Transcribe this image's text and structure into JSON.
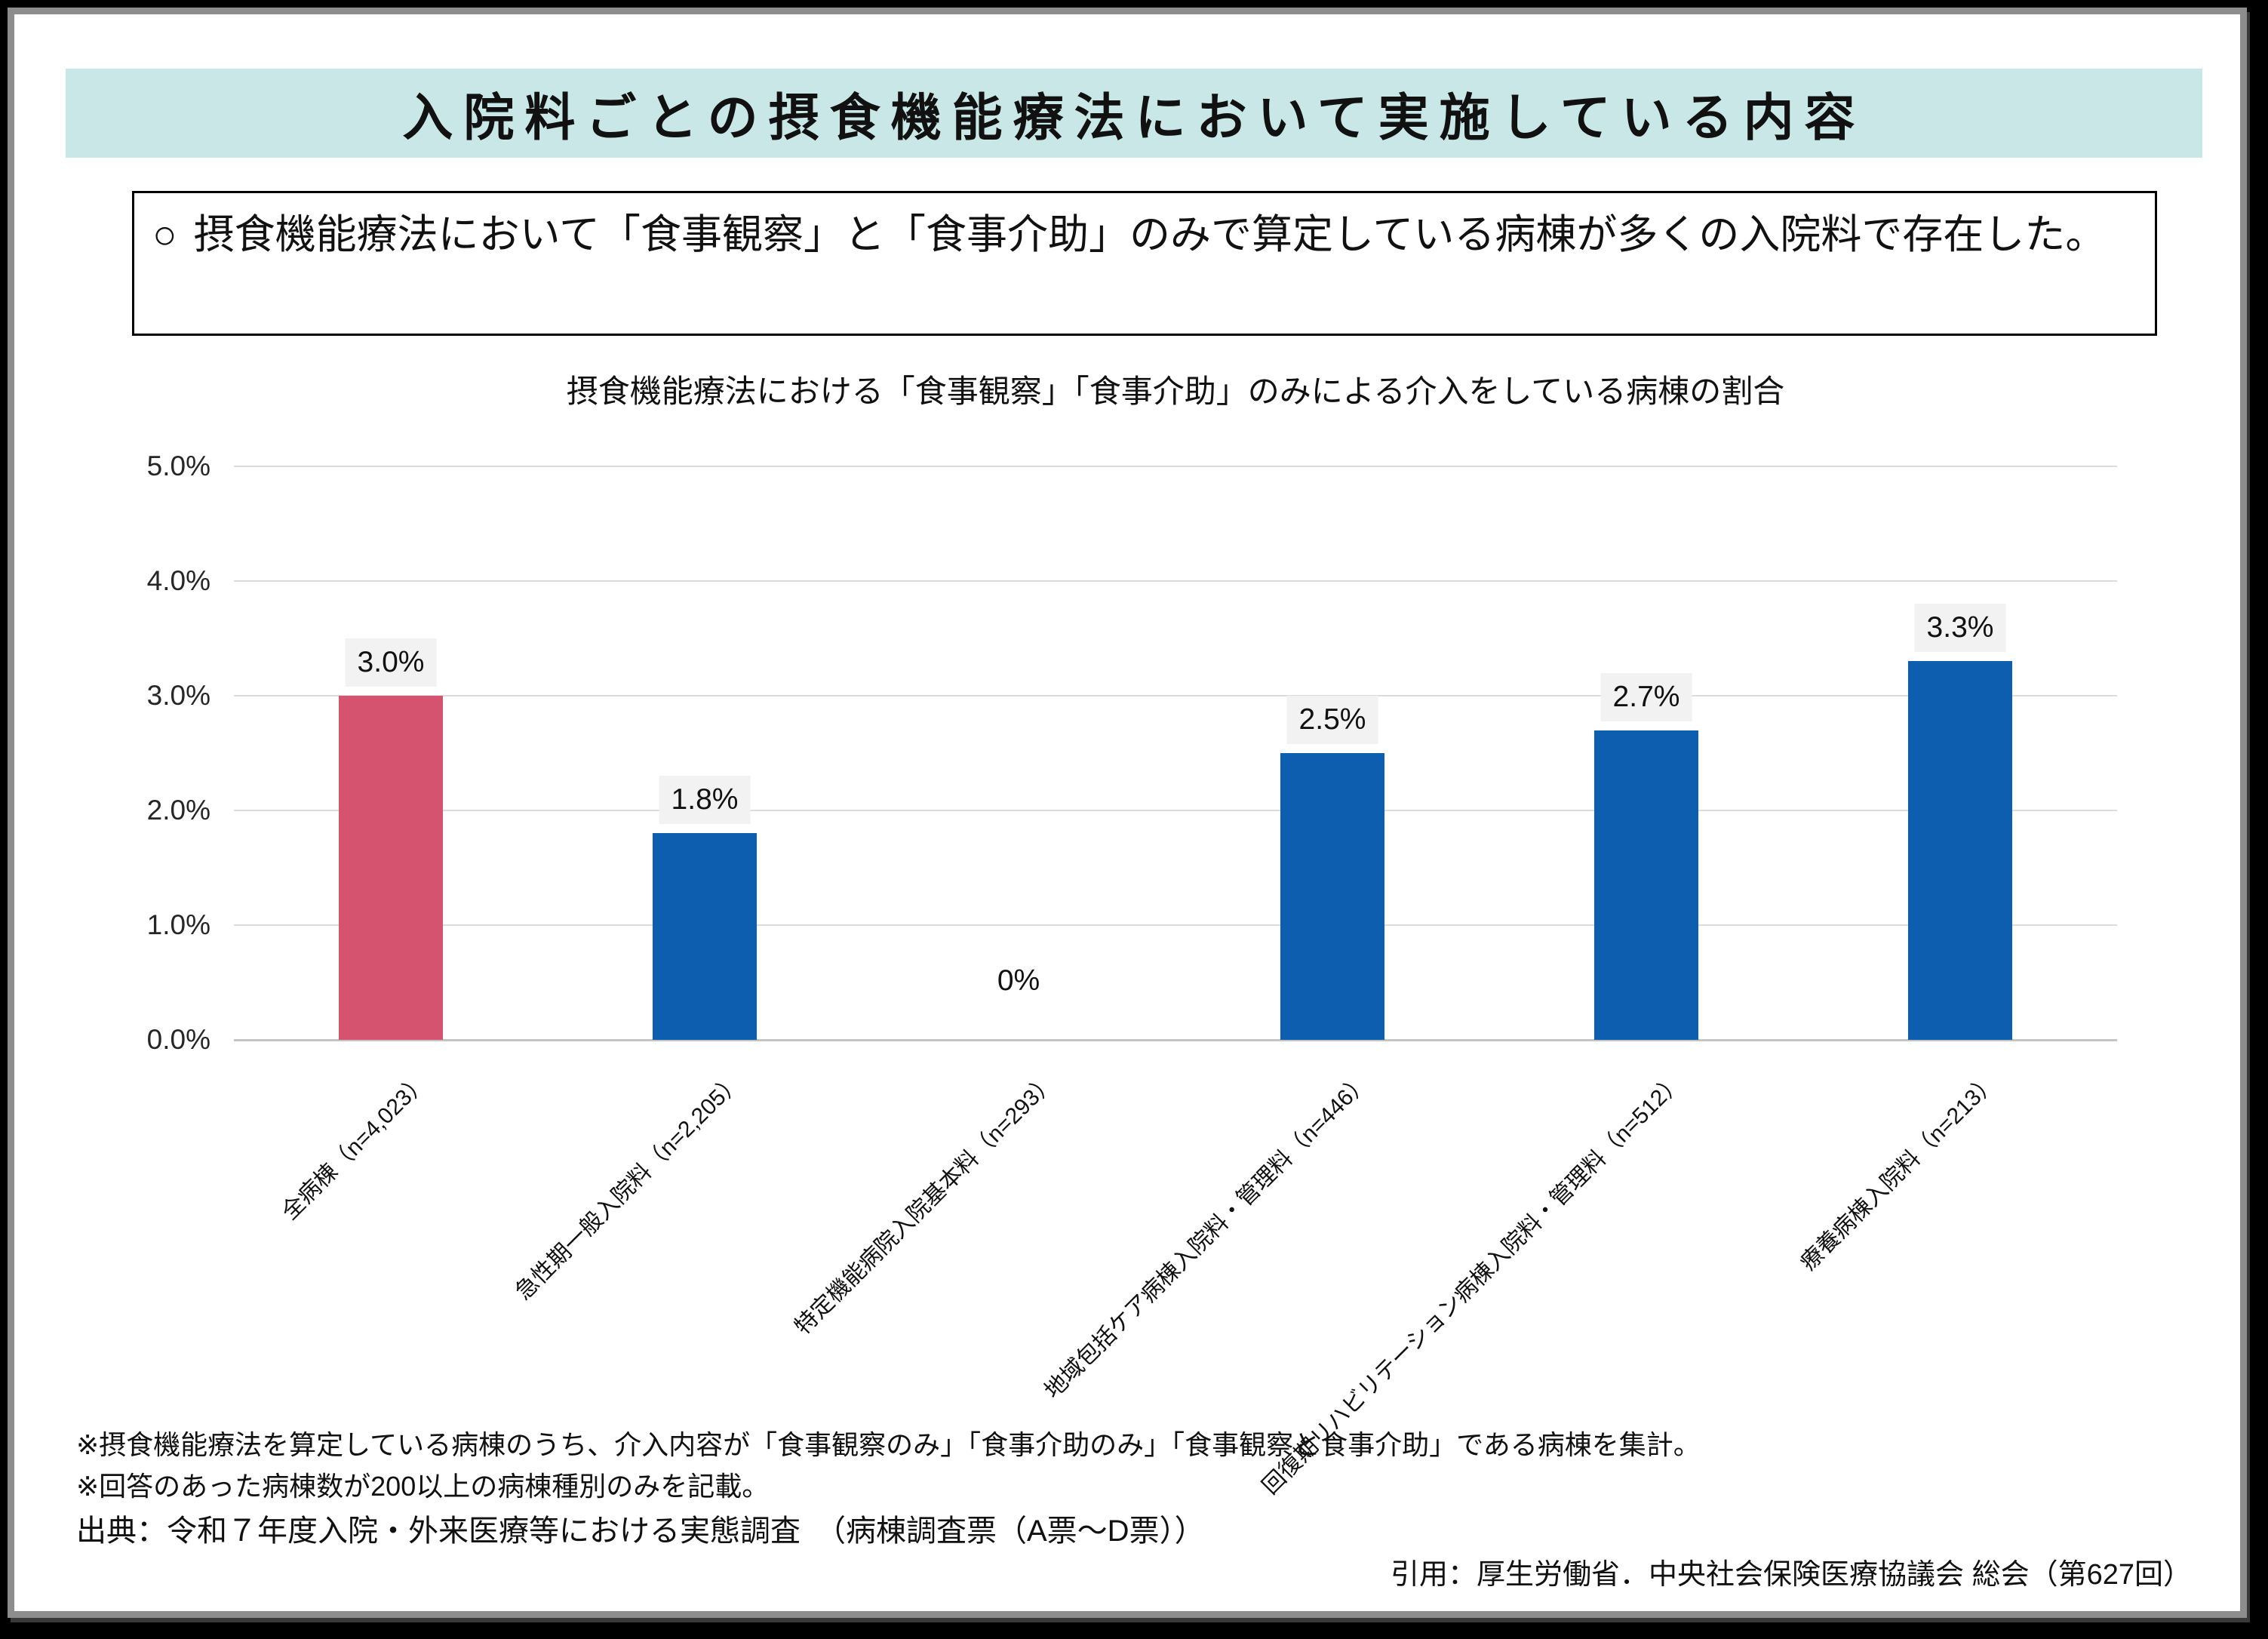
{
  "slide": {
    "title": "入院料ごとの摂食機能療法において実施している内容",
    "statement": {
      "marker": "○",
      "text": "摂食機能療法において「食事観察」と「食事介助」のみで算定している病棟が多くの入院料で存在した。"
    },
    "footnotes": [
      "※摂食機能療法を算定している病棟のうち、介入内容が「食事観察のみ」「食事介助のみ」「食事観察と食事介助」である病棟を集計。",
      "※回答のあった病棟数が200以上の病棟種別のみを記載。"
    ],
    "source_line": "出典：令和７年度入院・外来医療等における実態調査　（病棟調査票（A票～D票））",
    "citation": "引用：厚生労働省．中央社会保険医療協議会 総会（第627回）"
  },
  "chart_data": {
    "type": "bar",
    "title": "摂食機能療法における「食事観察」「食事介助」のみによる介入をしている病棟の割合",
    "categories": [
      "全病棟（n=4,023）",
      "急性期一般入院料（n=2,205）",
      "特定機能病院入院基本料（n=293）",
      "地域包括ケア病棟入院料・管理料（n=446）",
      "回復期リハビリテーション病棟入院料・管理料（n=512）",
      "療養病棟入院料（n=213）"
    ],
    "values": [
      3.0,
      1.8,
      0,
      2.5,
      2.7,
      3.3
    ],
    "data_labels": [
      "3.0%",
      "1.8%",
      "0%",
      "2.5%",
      "2.7%",
      "3.3%"
    ],
    "bar_colors": [
      "#D5536F",
      "#0D5EAE",
      "#0D5EAE",
      "#0D5EAE",
      "#0D5EAE",
      "#0D5EAE"
    ],
    "xlabel": "",
    "ylabel": "",
    "ylim": [
      0,
      5
    ],
    "ytick_labels": [
      "0.0%",
      "1.0%",
      "2.0%",
      "3.0%",
      "4.0%",
      "5.0%"
    ],
    "grid": true,
    "legend": "none"
  },
  "colors": {
    "banner_bg": "#C9E7E7",
    "accent_pink": "#D5536F",
    "accent_blue": "#0D5EAE",
    "data_label_bg": "#F2F2F2",
    "gridline": "#DCDCDC",
    "axis_line": "#C4C4C4",
    "frame_gray": "#8d8d8d"
  }
}
